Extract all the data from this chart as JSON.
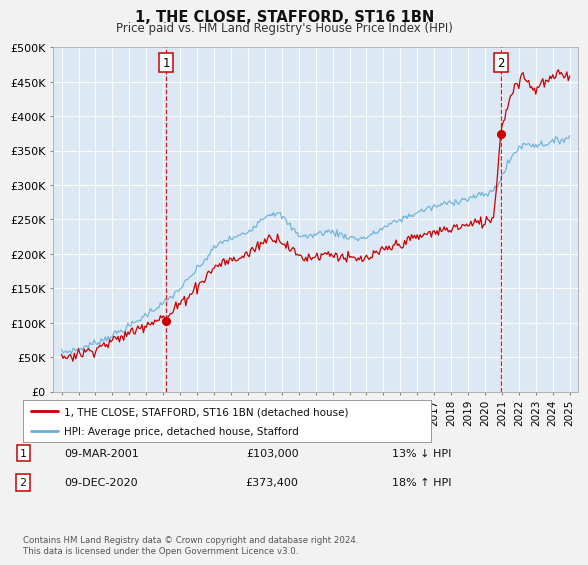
{
  "title": "1, THE CLOSE, STAFFORD, ST16 1BN",
  "subtitle": "Price paid vs. HM Land Registry's House Price Index (HPI)",
  "fig_facecolor": "#f2f2f2",
  "plot_bg_color": "#dce9f5",
  "hpi_color": "#6baed6",
  "price_color": "#cc0000",
  "vline_color": "#cc0000",
  "sale1_year": 2001.19,
  "sale1_price": 103000,
  "sale2_year": 2020.93,
  "sale2_price": 373400,
  "ylim_min": 0,
  "ylim_max": 500000,
  "yticks": [
    0,
    50000,
    100000,
    150000,
    200000,
    250000,
    300000,
    350000,
    400000,
    450000,
    500000
  ],
  "xlim_min": 1994.5,
  "xlim_max": 2025.5,
  "footnote": "Contains HM Land Registry data © Crown copyright and database right 2024.\nThis data is licensed under the Open Government Licence v3.0.",
  "legend1": "1, THE CLOSE, STAFFORD, ST16 1BN (detached house)",
  "legend2": "HPI: Average price, detached house, Stafford",
  "table_row1_num": "1",
  "table_row1_date": "09-MAR-2001",
  "table_row1_price": "£103,000",
  "table_row1_hpi": "13% ↓ HPI",
  "table_row2_num": "2",
  "table_row2_date": "09-DEC-2020",
  "table_row2_price": "£373,400",
  "table_row2_hpi": "18% ↑ HPI"
}
